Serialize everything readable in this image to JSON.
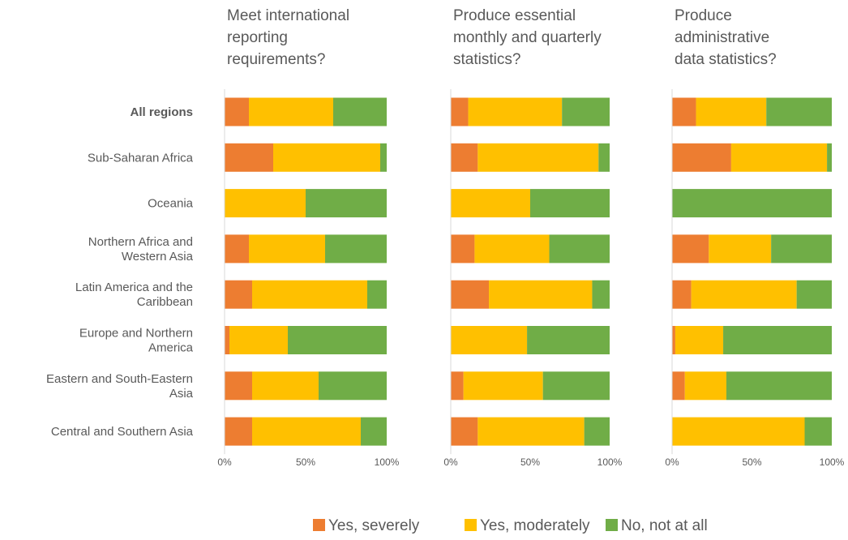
{
  "chart_data": {
    "type": "bar",
    "orientation": "horizontal",
    "stacked": "percent",
    "categories": [
      "All regions",
      "Sub-Saharan Africa",
      "Oceania",
      "Northern Africa and Western Asia",
      "Latin America and the Caribbean",
      "Europe and Northern America",
      "Eastern and South-Eastern Asia",
      "Central and Southern Asia"
    ],
    "category_label_lines": [
      [
        "All regions"
      ],
      [
        "Sub-Saharan Africa"
      ],
      [
        "Oceania"
      ],
      [
        "Northern Africa and",
        "Western Asia"
      ],
      [
        "Latin America and the",
        "Caribbean"
      ],
      [
        "Europe and Northern",
        "America"
      ],
      [
        "Eastern and South-Eastern",
        "Asia"
      ],
      [
        "Central and Southern Asia"
      ]
    ],
    "bold_categories": [
      "All regions"
    ],
    "xlim": [
      0,
      100
    ],
    "x_ticks": [
      "0%",
      "50%",
      "100%"
    ],
    "legend_position": "bottom",
    "series_meta": [
      {
        "name": "Yes, severely",
        "color": "#ED7D31"
      },
      {
        "name": "Yes, moderately",
        "color": "#FFC000"
      },
      {
        "name": "No, not at all",
        "color": "#70AD47"
      }
    ],
    "panels": [
      {
        "title_lines": [
          "Meet international",
          "reporting",
          "requirements?"
        ],
        "series": [
          {
            "name": "Yes, severely",
            "values": [
              15,
              30,
              0,
              15,
              17,
              3,
              17,
              17
            ]
          },
          {
            "name": "Yes, moderately",
            "values": [
              52,
              66,
              50,
              47,
              71,
              36,
              41,
              67
            ]
          },
          {
            "name": "No, not at all",
            "values": [
              33,
              4,
              50,
              38,
              12,
              61,
              42,
              16
            ]
          }
        ]
      },
      {
        "title_lines": [
          "Produce essential",
          "monthly and quarterly",
          "statistics?"
        ],
        "series": [
          {
            "name": "Yes, severely",
            "values": [
              11,
              17,
              0,
              15,
              24,
              0,
              8,
              17
            ]
          },
          {
            "name": "Yes, moderately",
            "values": [
              59,
              76,
              50,
              47,
              65,
              48,
              50,
              67
            ]
          },
          {
            "name": "No, not at all",
            "values": [
              30,
              7,
              50,
              38,
              11,
              52,
              42,
              16
            ]
          }
        ]
      },
      {
        "title_lines": [
          "Produce",
          "administrative",
          "data statistics?"
        ],
        "series": [
          {
            "name": "Yes, severely",
            "values": [
              15,
              37,
              0,
              23,
              12,
              2,
              8,
              0
            ]
          },
          {
            "name": "Yes, moderately",
            "values": [
              44,
              60,
              0,
              39,
              66,
              30,
              26,
              83
            ]
          },
          {
            "name": "No, not at all",
            "values": [
              41,
              3,
              100,
              38,
              22,
              68,
              66,
              17
            ]
          }
        ]
      }
    ]
  }
}
